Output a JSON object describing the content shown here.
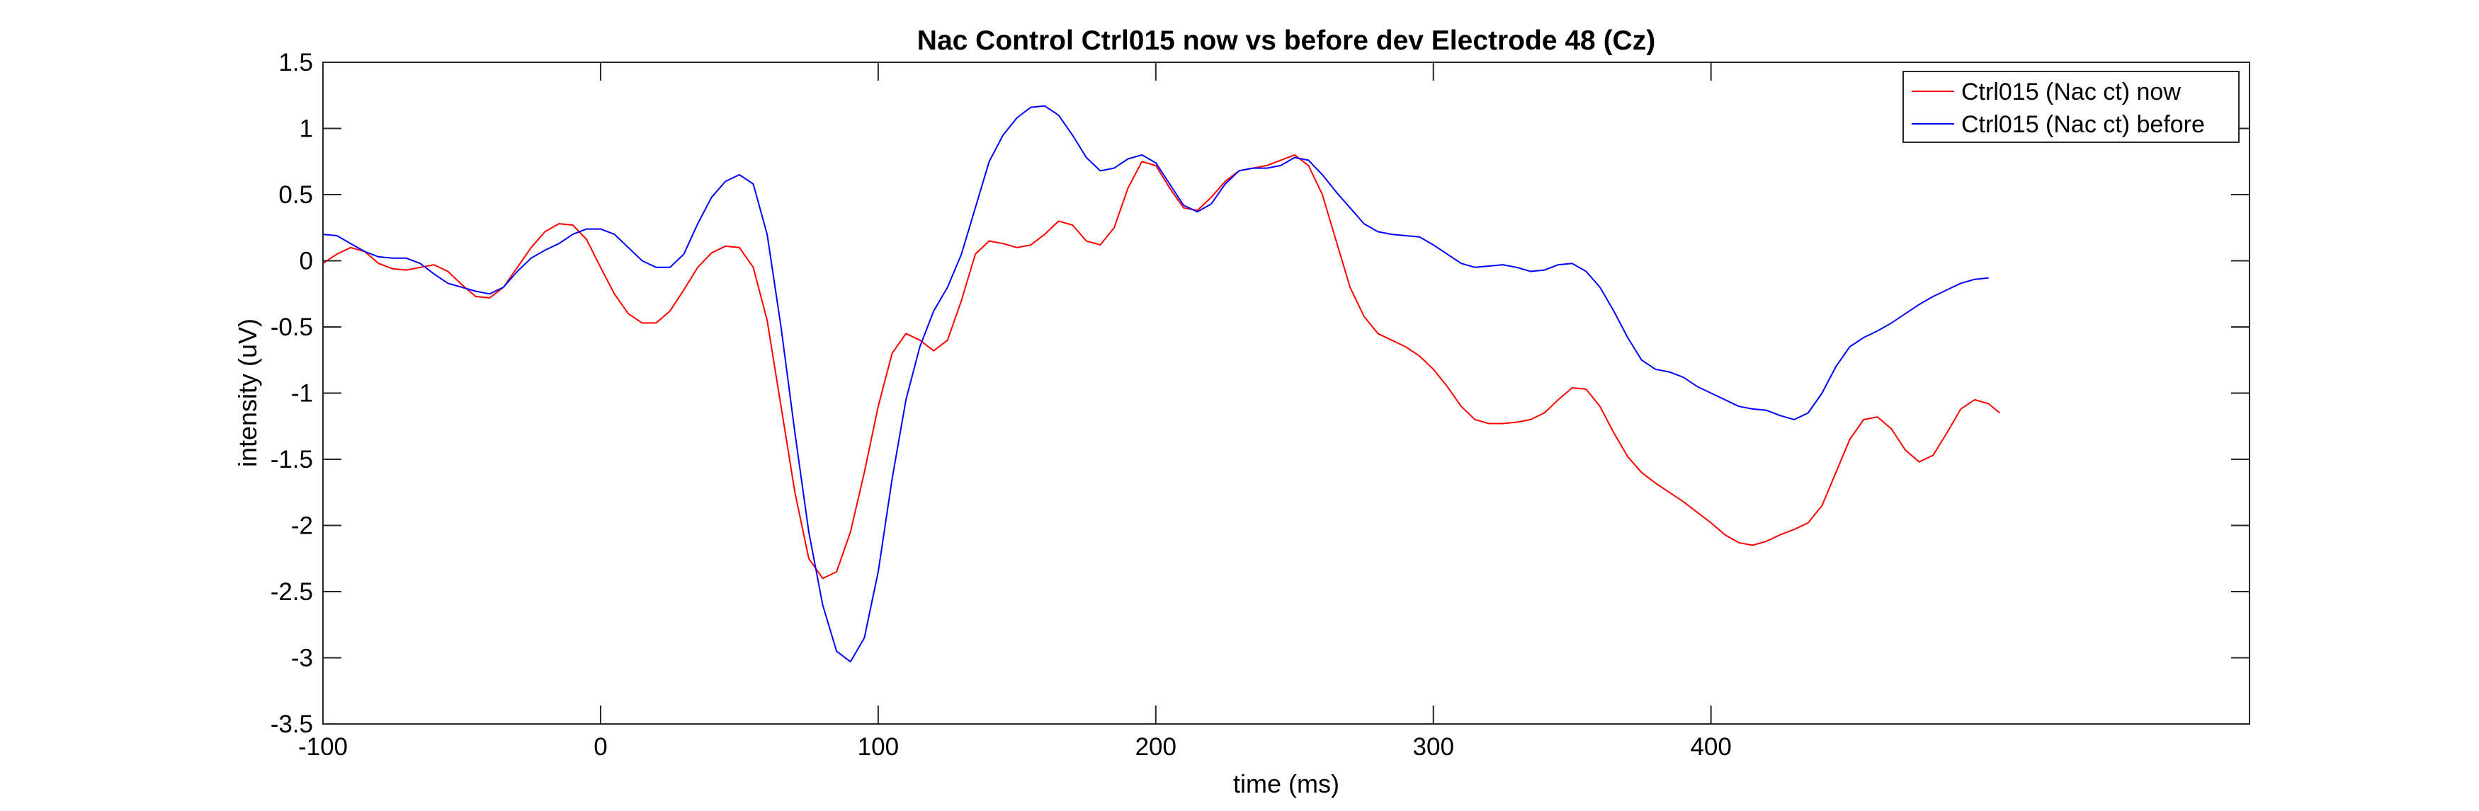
{
  "chart_data": {
    "type": "line",
    "title": "Nac Control Ctrl015 now vs before dev Electrode 48 (Cz)",
    "xlabel": "time (ms)",
    "ylabel": "intensity (uV)",
    "xlim": [
      -100,
      594
    ],
    "ylim": [
      -3.5,
      1.5
    ],
    "xticks": [
      -100,
      0,
      100,
      200,
      300,
      400
    ],
    "xtick_labels": [
      "-100",
      "0",
      "100",
      "200",
      "300",
      "400"
    ],
    "yticks": [
      -3.5,
      -3,
      -2.5,
      -2,
      -1.5,
      -1,
      -0.5,
      0,
      0.5,
      1,
      1.5
    ],
    "ytick_labels": [
      "-3.5",
      "-3",
      "-2.5",
      "-2",
      "-1.5",
      "-1",
      "-0.5",
      "0",
      "0.5",
      "1",
      "1.5"
    ],
    "grid": false,
    "legend_position": "top-right",
    "series": [
      {
        "name": "Ctrl015 (Nac ct) now",
        "color": "#ff0000",
        "points": [
          [
            -100,
            -0.02
          ],
          [
            -95,
            0.05
          ],
          [
            -90,
            0.1
          ],
          [
            -85,
            0.07
          ],
          [
            -80,
            -0.02
          ],
          [
            -75,
            -0.06
          ],
          [
            -70,
            -0.07
          ],
          [
            -65,
            -0.05
          ],
          [
            -60,
            -0.03
          ],
          [
            -55,
            -0.08
          ],
          [
            -50,
            -0.18
          ],
          [
            -45,
            -0.27
          ],
          [
            -40,
            -0.28
          ],
          [
            -35,
            -0.2
          ],
          [
            -30,
            -0.05
          ],
          [
            -25,
            0.1
          ],
          [
            -20,
            0.22
          ],
          [
            -15,
            0.28
          ],
          [
            -10,
            0.27
          ],
          [
            -5,
            0.16
          ],
          [
            0,
            -0.05
          ],
          [
            5,
            -0.25
          ],
          [
            10,
            -0.4
          ],
          [
            15,
            -0.47
          ],
          [
            20,
            -0.47
          ],
          [
            25,
            -0.38
          ],
          [
            30,
            -0.22
          ],
          [
            35,
            -0.05
          ],
          [
            40,
            0.06
          ],
          [
            45,
            0.11
          ],
          [
            50,
            0.1
          ],
          [
            55,
            -0.05
          ],
          [
            60,
            -0.45
          ],
          [
            65,
            -1.1
          ],
          [
            70,
            -1.75
          ],
          [
            75,
            -2.25
          ],
          [
            80,
            -2.4
          ],
          [
            85,
            -2.35
          ],
          [
            90,
            -2.05
          ],
          [
            95,
            -1.6
          ],
          [
            100,
            -1.1
          ],
          [
            105,
            -0.7
          ],
          [
            110,
            -0.55
          ],
          [
            115,
            -0.6
          ],
          [
            120,
            -0.68
          ],
          [
            125,
            -0.6
          ],
          [
            130,
            -0.3
          ],
          [
            135,
            0.05
          ],
          [
            140,
            0.15
          ],
          [
            145,
            0.13
          ],
          [
            150,
            0.1
          ],
          [
            155,
            0.12
          ],
          [
            160,
            0.2
          ],
          [
            165,
            0.3
          ],
          [
            170,
            0.27
          ],
          [
            175,
            0.15
          ],
          [
            180,
            0.12
          ],
          [
            185,
            0.25
          ],
          [
            190,
            0.55
          ],
          [
            195,
            0.75
          ],
          [
            200,
            0.72
          ],
          [
            205,
            0.55
          ],
          [
            210,
            0.4
          ],
          [
            215,
            0.38
          ],
          [
            220,
            0.48
          ],
          [
            225,
            0.6
          ],
          [
            230,
            0.68
          ],
          [
            235,
            0.7
          ],
          [
            240,
            0.72
          ],
          [
            245,
            0.76
          ],
          [
            250,
            0.8
          ],
          [
            255,
            0.72
          ],
          [
            260,
            0.5
          ],
          [
            265,
            0.15
          ],
          [
            270,
            -0.2
          ],
          [
            275,
            -0.42
          ],
          [
            280,
            -0.55
          ],
          [
            285,
            -0.6
          ],
          [
            290,
            -0.65
          ],
          [
            295,
            -0.72
          ],
          [
            300,
            -0.82
          ],
          [
            305,
            -0.95
          ],
          [
            310,
            -1.1
          ],
          [
            315,
            -1.2
          ],
          [
            320,
            -1.23
          ],
          [
            325,
            -1.23
          ],
          [
            330,
            -1.22
          ],
          [
            335,
            -1.2
          ],
          [
            340,
            -1.15
          ],
          [
            345,
            -1.05
          ],
          [
            350,
            -0.96
          ],
          [
            355,
            -0.97
          ],
          [
            360,
            -1.1
          ],
          [
            365,
            -1.3
          ],
          [
            370,
            -1.48
          ],
          [
            375,
            -1.6
          ],
          [
            380,
            -1.68
          ],
          [
            385,
            -1.75
          ],
          [
            390,
            -1.82
          ],
          [
            395,
            -1.9
          ],
          [
            400,
            -1.98
          ],
          [
            405,
            -2.07
          ],
          [
            410,
            -2.13
          ],
          [
            415,
            -2.15
          ],
          [
            420,
            -2.12
          ],
          [
            425,
            -2.07
          ],
          [
            430,
            -2.03
          ],
          [
            435,
            -1.98
          ],
          [
            440,
            -1.85
          ],
          [
            445,
            -1.6
          ],
          [
            450,
            -1.35
          ],
          [
            455,
            -1.2
          ],
          [
            460,
            -1.18
          ],
          [
            465,
            -1.27
          ],
          [
            470,
            -1.43
          ],
          [
            475,
            -1.52
          ],
          [
            480,
            -1.47
          ],
          [
            485,
            -1.3
          ],
          [
            490,
            -1.12
          ],
          [
            495,
            -1.05
          ],
          [
            500,
            -1.08
          ],
          [
            504,
            -1.15
          ]
        ]
      },
      {
        "name": "Ctrl015 (Nac ct) before",
        "color": "#0000ff",
        "points": [
          [
            -100,
            0.2
          ],
          [
            -95,
            0.19
          ],
          [
            -90,
            0.13
          ],
          [
            -85,
            0.07
          ],
          [
            -80,
            0.03
          ],
          [
            -75,
            0.02
          ],
          [
            -70,
            0.02
          ],
          [
            -65,
            -0.02
          ],
          [
            -60,
            -0.1
          ],
          [
            -55,
            -0.17
          ],
          [
            -50,
            -0.2
          ],
          [
            -45,
            -0.23
          ],
          [
            -40,
            -0.25
          ],
          [
            -35,
            -0.2
          ],
          [
            -30,
            -0.08
          ],
          [
            -25,
            0.02
          ],
          [
            -20,
            0.08
          ],
          [
            -15,
            0.13
          ],
          [
            -10,
            0.2
          ],
          [
            -5,
            0.24
          ],
          [
            0,
            0.24
          ],
          [
            5,
            0.2
          ],
          [
            10,
            0.1
          ],
          [
            15,
            0.0
          ],
          [
            20,
            -0.05
          ],
          [
            25,
            -0.05
          ],
          [
            30,
            0.05
          ],
          [
            35,
            0.28
          ],
          [
            40,
            0.48
          ],
          [
            45,
            0.6
          ],
          [
            50,
            0.65
          ],
          [
            55,
            0.58
          ],
          [
            60,
            0.2
          ],
          [
            65,
            -0.5
          ],
          [
            70,
            -1.3
          ],
          [
            75,
            -2.05
          ],
          [
            80,
            -2.6
          ],
          [
            85,
            -2.95
          ],
          [
            90,
            -3.03
          ],
          [
            95,
            -2.85
          ],
          [
            100,
            -2.35
          ],
          [
            105,
            -1.65
          ],
          [
            110,
            -1.05
          ],
          [
            115,
            -0.65
          ],
          [
            120,
            -0.38
          ],
          [
            125,
            -0.2
          ],
          [
            130,
            0.05
          ],
          [
            135,
            0.4
          ],
          [
            140,
            0.75
          ],
          [
            145,
            0.95
          ],
          [
            150,
            1.08
          ],
          [
            155,
            1.16
          ],
          [
            160,
            1.17
          ],
          [
            165,
            1.1
          ],
          [
            170,
            0.95
          ],
          [
            175,
            0.78
          ],
          [
            180,
            0.68
          ],
          [
            185,
            0.7
          ],
          [
            190,
            0.77
          ],
          [
            195,
            0.8
          ],
          [
            200,
            0.74
          ],
          [
            205,
            0.58
          ],
          [
            210,
            0.42
          ],
          [
            215,
            0.37
          ],
          [
            220,
            0.43
          ],
          [
            225,
            0.58
          ],
          [
            230,
            0.68
          ],
          [
            235,
            0.7
          ],
          [
            240,
            0.7
          ],
          [
            245,
            0.72
          ],
          [
            250,
            0.78
          ],
          [
            255,
            0.76
          ],
          [
            260,
            0.65
          ],
          [
            265,
            0.52
          ],
          [
            270,
            0.4
          ],
          [
            275,
            0.28
          ],
          [
            280,
            0.22
          ],
          [
            285,
            0.2
          ],
          [
            290,
            0.19
          ],
          [
            295,
            0.18
          ],
          [
            300,
            0.12
          ],
          [
            305,
            0.05
          ],
          [
            310,
            -0.02
          ],
          [
            315,
            -0.05
          ],
          [
            320,
            -0.04
          ],
          [
            325,
            -0.03
          ],
          [
            330,
            -0.05
          ],
          [
            335,
            -0.08
          ],
          [
            340,
            -0.07
          ],
          [
            345,
            -0.03
          ],
          [
            350,
            -0.02
          ],
          [
            355,
            -0.08
          ],
          [
            360,
            -0.2
          ],
          [
            365,
            -0.38
          ],
          [
            370,
            -0.58
          ],
          [
            375,
            -0.75
          ],
          [
            380,
            -0.82
          ],
          [
            385,
            -0.84
          ],
          [
            390,
            -0.88
          ],
          [
            395,
            -0.95
          ],
          [
            400,
            -1.0
          ],
          [
            405,
            -1.05
          ],
          [
            410,
            -1.1
          ],
          [
            415,
            -1.12
          ],
          [
            420,
            -1.13
          ],
          [
            425,
            -1.17
          ],
          [
            430,
            -1.2
          ],
          [
            435,
            -1.15
          ],
          [
            440,
            -1.0
          ],
          [
            445,
            -0.8
          ],
          [
            450,
            -0.65
          ],
          [
            455,
            -0.58
          ],
          [
            460,
            -0.53
          ],
          [
            465,
            -0.47
          ],
          [
            470,
            -0.4
          ],
          [
            475,
            -0.33
          ],
          [
            480,
            -0.27
          ],
          [
            485,
            -0.22
          ],
          [
            490,
            -0.17
          ],
          [
            495,
            -0.14
          ],
          [
            500,
            -0.13
          ]
        ]
      }
    ]
  }
}
